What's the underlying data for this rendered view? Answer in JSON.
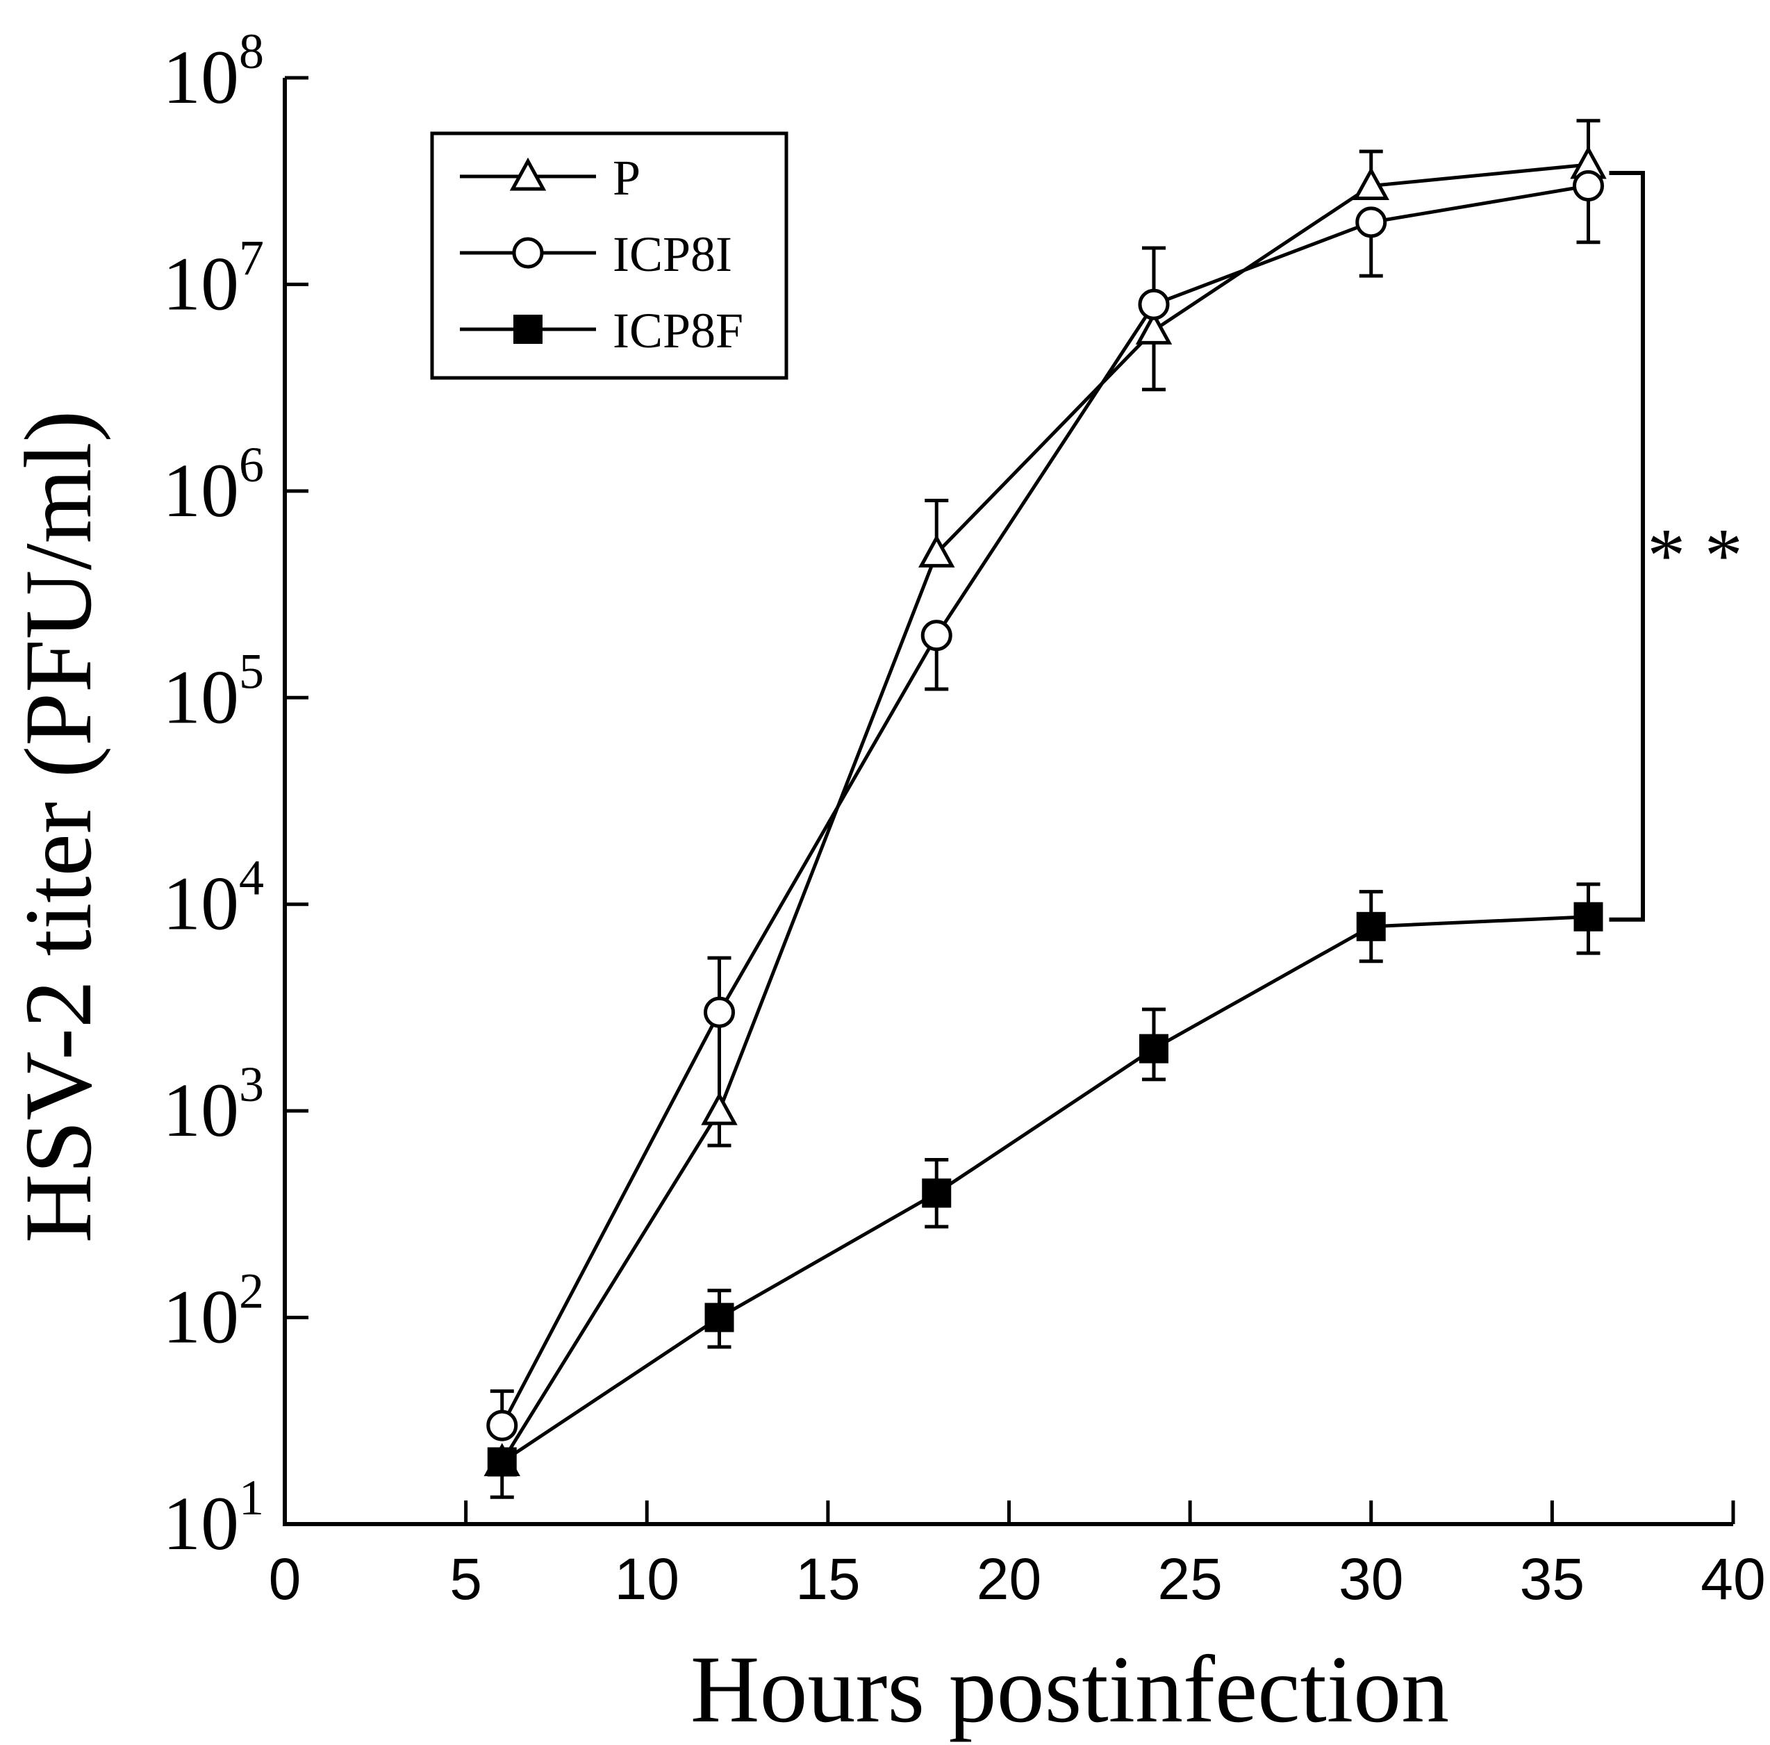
{
  "chart_data": {
    "type": "line",
    "title": "",
    "xlabel": "Hours postinfection",
    "ylabel": "HSV-2 titer (PFU/ml)",
    "yscale": "log",
    "xlim": [
      0,
      40
    ],
    "ylim_exp": [
      1,
      8
    ],
    "xticks": [
      0,
      5,
      10,
      15,
      20,
      25,
      30,
      35,
      40
    ],
    "xtick_labels": [
      "0",
      "5",
      "10",
      "15",
      "20",
      "25",
      "30",
      "35",
      "40"
    ],
    "yticks": [
      {
        "exp": 1,
        "base": "10",
        "sup": "1"
      },
      {
        "exp": 2,
        "base": "10",
        "sup": "2"
      },
      {
        "exp": 3,
        "base": "10",
        "sup": "3"
      },
      {
        "exp": 4,
        "base": "10",
        "sup": "4"
      },
      {
        "exp": 5,
        "base": "10",
        "sup": "5"
      },
      {
        "exp": 6,
        "base": "10",
        "sup": "6"
      },
      {
        "exp": 7,
        "base": "10",
        "sup": "7"
      },
      {
        "exp": 8,
        "base": "10",
        "sup": "8"
      }
    ],
    "x": [
      6,
      12,
      18,
      24,
      30,
      36
    ],
    "series": [
      {
        "name": "P",
        "marker": "triangle-open",
        "values": [
          20,
          1000,
          500000,
          6000000,
          30000000,
          38000000
        ],
        "err_hi": [
          null,
          5500,
          900000,
          15000000,
          44000000,
          62000000
        ],
        "err_lo": [
          null,
          680,
          null,
          3100000,
          null,
          null
        ]
      },
      {
        "name": "ICP8I",
        "marker": "circle-open",
        "values": [
          30,
          3000,
          200000,
          8000000,
          20000000,
          30000000
        ],
        "err_hi": [
          44,
          null,
          null,
          null,
          null,
          null
        ],
        "err_lo": [
          null,
          null,
          110000,
          null,
          11000000,
          16000000
        ]
      },
      {
        "name": "ICP8F",
        "marker": "square-filled",
        "values": [
          20,
          100,
          400,
          2000,
          7800,
          8700
        ],
        "err_hi": [
          null,
          135,
          580,
          3100,
          11500,
          12500
        ],
        "err_lo": [
          13.5,
          72,
          275,
          1420,
          5300,
          5800
        ]
      }
    ],
    "legend": {
      "position": "top-left"
    },
    "significance": {
      "label": "* *",
      "between": [
        "P",
        "ICP8F"
      ],
      "at_x": 36
    }
  }
}
